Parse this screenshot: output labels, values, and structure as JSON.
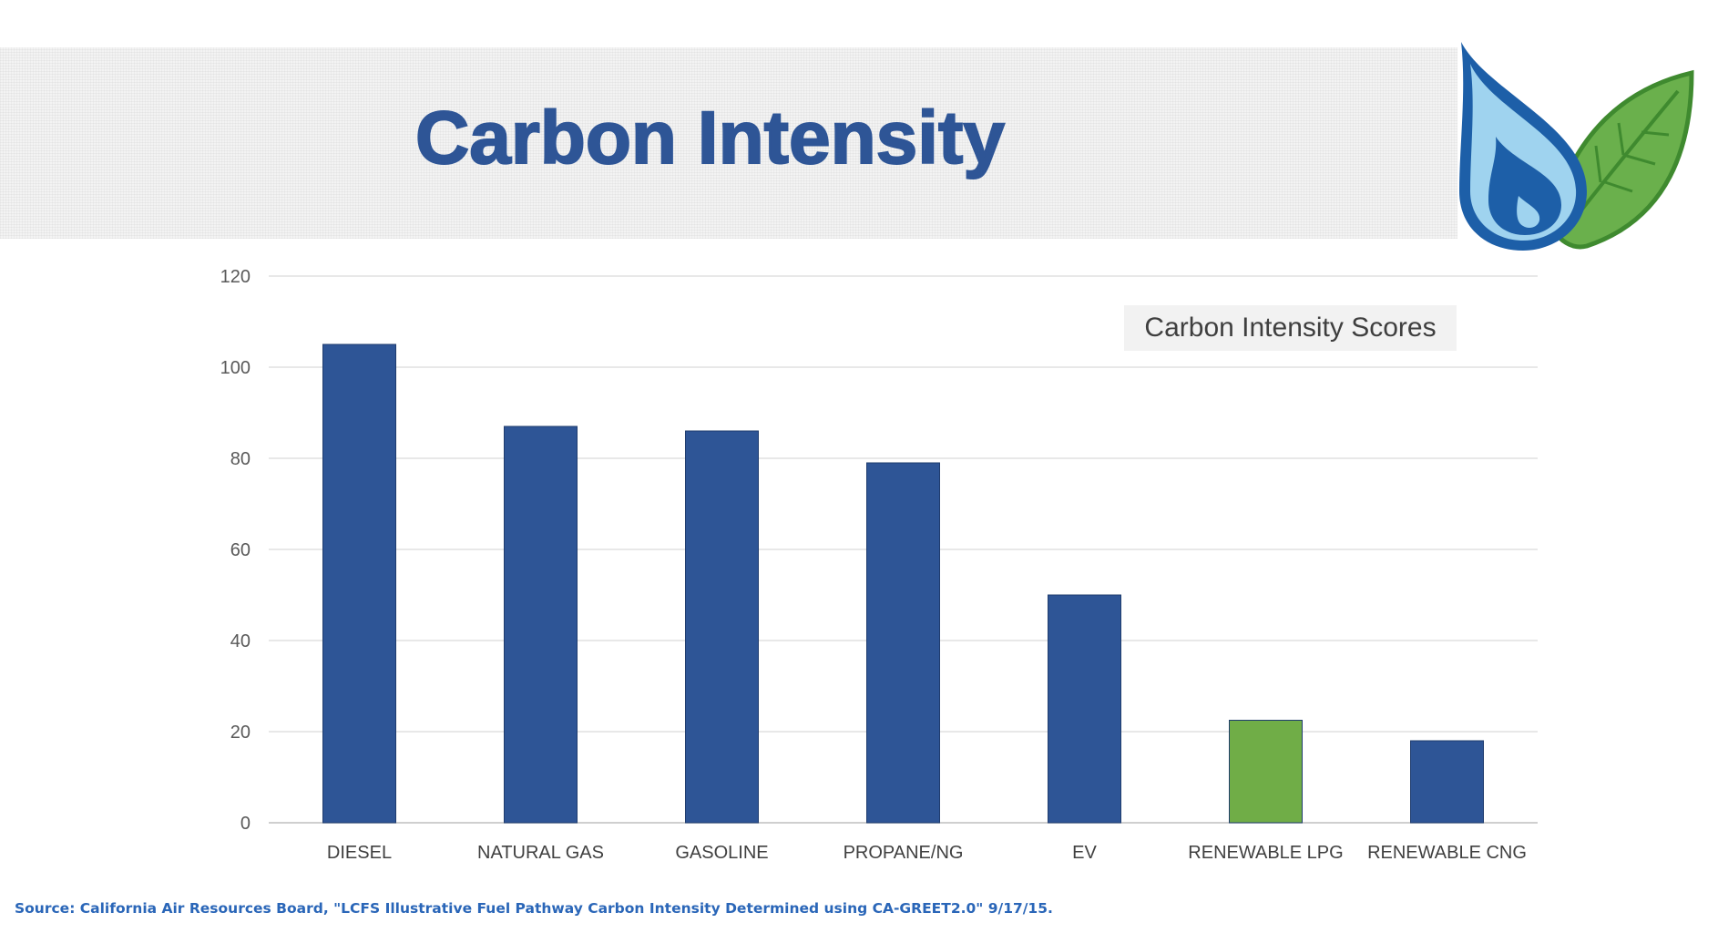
{
  "header": {
    "title": "Carbon Intensity"
  },
  "logo": {
    "icon": "water-drop-and-leaf-logo",
    "colors": {
      "drop_dark": "#1d5fa8",
      "drop_light": "#9fd3ef",
      "leaf": "#6ab04c",
      "leaf_dark": "#3f8a2f"
    }
  },
  "footer": {
    "source": "Source: California Air Resources Board, \"LCFS Illustrative Fuel Pathway Carbon Intensity Determined using CA-GREET2.0\" 9/17/15."
  },
  "chart_data": {
    "type": "bar",
    "title": "Carbon Intensity Scores",
    "xlabel": "",
    "ylabel": "",
    "categories": [
      "DIESEL",
      "NATURAL GAS",
      "GASOLINE",
      "PROPANE/NG",
      "EV",
      "RENEWABLE LPG",
      "RENEWABLE CNG"
    ],
    "values": [
      105,
      87,
      86,
      79,
      50,
      22.5,
      18
    ],
    "bar_colors": [
      "#2e5596",
      "#2e5596",
      "#2e5596",
      "#2e5596",
      "#2e5596",
      "#70ad47",
      "#2e5596"
    ],
    "ylim": [
      0,
      120
    ],
    "yticks": [
      0,
      20,
      40,
      60,
      80,
      100,
      120
    ],
    "grid": true,
    "legend": "none"
  }
}
